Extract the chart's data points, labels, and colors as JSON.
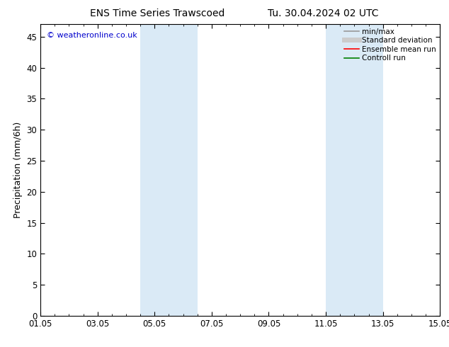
{
  "title_left": "ENS Time Series Trawscoed",
  "title_right": "Tu. 30.04.2024 02 UTC",
  "ylabel": "Precipitation (mm/6h)",
  "bg_color": "#ffffff",
  "plot_bg_color": "#ffffff",
  "xmin": 0,
  "xmax": 14,
  "ymin": 0,
  "ymax": 47,
  "yticks": [
    0,
    5,
    10,
    15,
    20,
    25,
    30,
    35,
    40,
    45
  ],
  "xtick_labels": [
    "01.05",
    "03.05",
    "05.05",
    "07.05",
    "09.05",
    "11.05",
    "13.05",
    "15.05"
  ],
  "xtick_positions": [
    0,
    2,
    4,
    6,
    8,
    10,
    12,
    14
  ],
  "shaded_bands": [
    {
      "xstart": 3.5,
      "xend": 4.5,
      "color": "#daeaf6"
    },
    {
      "xstart": 4.5,
      "xend": 5.5,
      "color": "#daeaf6"
    },
    {
      "xstart": 10.0,
      "xend": 11.0,
      "color": "#daeaf6"
    },
    {
      "xstart": 11.0,
      "xend": 12.0,
      "color": "#daeaf6"
    }
  ],
  "watermark": "© weatheronline.co.uk",
  "watermark_color": "#0000cc",
  "legend_items": [
    {
      "label": "min/max",
      "color": "#999999",
      "linewidth": 1.2,
      "linestyle": "-"
    },
    {
      "label": "Standard deviation",
      "color": "#cccccc",
      "linewidth": 5,
      "linestyle": "-"
    },
    {
      "label": "Ensemble mean run",
      "color": "#ff0000",
      "linewidth": 1.2,
      "linestyle": "-"
    },
    {
      "label": "Controll run",
      "color": "#008000",
      "linewidth": 1.2,
      "linestyle": "-"
    }
  ],
  "title_fontsize": 10,
  "ylabel_fontsize": 9,
  "tick_fontsize": 8.5,
  "watermark_fontsize": 8,
  "legend_fontsize": 7.5
}
